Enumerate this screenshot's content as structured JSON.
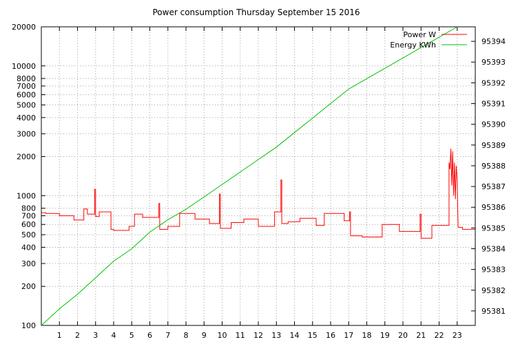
{
  "chart_data": {
    "type": "line",
    "title": "Power consumption Thursday September 15 2016",
    "x_ticks": [
      1,
      2,
      3,
      4,
      5,
      6,
      7,
      8,
      9,
      10,
      11,
      12,
      13,
      14,
      15,
      16,
      17,
      18,
      19,
      20,
      21,
      22,
      23
    ],
    "xlim": [
      0,
      24
    ],
    "y_left": {
      "scale": "log",
      "ylim": [
        100,
        20000
      ],
      "ticks": [
        100,
        200,
        300,
        400,
        500,
        600,
        700,
        800,
        1000,
        2000,
        3000,
        4000,
        5000,
        6000,
        7000,
        8000,
        10000,
        20000
      ]
    },
    "y_right": {
      "ylim": [
        95380.3,
        95394.7
      ],
      "ticks": [
        95381,
        95382,
        95383,
        95384,
        95385,
        95386,
        95387,
        95388,
        95389,
        95390,
        95391,
        95392,
        95393,
        95394
      ]
    },
    "grid": true,
    "legend_position": "top-right",
    "series": [
      {
        "name": "Power W",
        "axis": "left",
        "color": "#ff0000",
        "points": [
          [
            0,
            740
          ],
          [
            0.25,
            740
          ],
          [
            0.25,
            730
          ],
          [
            1.0,
            730
          ],
          [
            1.0,
            700
          ],
          [
            1.8,
            700
          ],
          [
            1.8,
            650
          ],
          [
            2.35,
            650
          ],
          [
            2.35,
            790
          ],
          [
            2.55,
            790
          ],
          [
            2.55,
            720
          ],
          [
            2.95,
            720
          ],
          [
            2.95,
            1120
          ],
          [
            3.0,
            1120
          ],
          [
            3.0,
            690
          ],
          [
            3.2,
            690
          ],
          [
            3.2,
            750
          ],
          [
            3.85,
            750
          ],
          [
            3.85,
            550
          ],
          [
            4.0,
            550
          ],
          [
            4.0,
            540
          ],
          [
            4.85,
            540
          ],
          [
            4.85,
            580
          ],
          [
            5.15,
            580
          ],
          [
            5.15,
            720
          ],
          [
            5.6,
            720
          ],
          [
            5.6,
            680
          ],
          [
            6.5,
            680
          ],
          [
            6.5,
            870
          ],
          [
            6.55,
            870
          ],
          [
            6.55,
            550
          ],
          [
            7.0,
            550
          ],
          [
            7.0,
            580
          ],
          [
            7.65,
            580
          ],
          [
            7.65,
            730
          ],
          [
            8.5,
            730
          ],
          [
            8.5,
            660
          ],
          [
            9.3,
            660
          ],
          [
            9.3,
            610
          ],
          [
            9.85,
            610
          ],
          [
            9.85,
            1030
          ],
          [
            9.9,
            1030
          ],
          [
            9.9,
            560
          ],
          [
            10.5,
            560
          ],
          [
            10.5,
            620
          ],
          [
            11.2,
            620
          ],
          [
            11.2,
            660
          ],
          [
            12.0,
            660
          ],
          [
            12.0,
            580
          ],
          [
            12.9,
            580
          ],
          [
            12.9,
            750
          ],
          [
            13.25,
            750
          ],
          [
            13.25,
            1320
          ],
          [
            13.3,
            1320
          ],
          [
            13.3,
            610
          ],
          [
            13.65,
            610
          ],
          [
            13.65,
            630
          ],
          [
            14.3,
            630
          ],
          [
            14.3,
            670
          ],
          [
            15.2,
            670
          ],
          [
            15.2,
            590
          ],
          [
            15.65,
            590
          ],
          [
            15.65,
            730
          ],
          [
            16.75,
            730
          ],
          [
            16.75,
            640
          ],
          [
            17.05,
            640
          ],
          [
            17.05,
            750
          ],
          [
            17.1,
            750
          ],
          [
            17.1,
            490
          ],
          [
            17.75,
            490
          ],
          [
            17.75,
            480
          ],
          [
            18.85,
            480
          ],
          [
            18.85,
            600
          ],
          [
            19.8,
            600
          ],
          [
            19.8,
            530
          ],
          [
            20.95,
            530
          ],
          [
            20.95,
            720
          ],
          [
            21.0,
            720
          ],
          [
            21.0,
            470
          ],
          [
            21.6,
            470
          ],
          [
            21.6,
            590
          ],
          [
            22.55,
            590
          ],
          [
            22.55,
            1800
          ],
          [
            22.6,
            1600
          ],
          [
            22.65,
            2300
          ],
          [
            22.7,
            1200
          ],
          [
            22.75,
            2200
          ],
          [
            22.8,
            1000
          ],
          [
            22.85,
            1800
          ],
          [
            22.9,
            940
          ],
          [
            22.95,
            1700
          ],
          [
            23.0,
            1300
          ],
          [
            23.05,
            570
          ],
          [
            23.3,
            570
          ],
          [
            23.3,
            550
          ],
          [
            24,
            550
          ]
        ]
      },
      {
        "name": "Energy KWh",
        "axis": "right",
        "color": "#00c000",
        "points": [
          [
            0,
            95380.3
          ],
          [
            1,
            95381.1
          ],
          [
            2,
            95381.8
          ],
          [
            3,
            95382.6
          ],
          [
            4,
            95383.4
          ],
          [
            5,
            95384.0
          ],
          [
            6,
            95384.8
          ],
          [
            7,
            95385.4
          ],
          [
            8,
            95385.9
          ],
          [
            9,
            95386.5
          ],
          [
            10,
            95387.1
          ],
          [
            11,
            95387.7
          ],
          [
            12,
            95388.3
          ],
          [
            13,
            95388.9
          ],
          [
            14,
            95389.6
          ],
          [
            15,
            95390.3
          ],
          [
            16,
            95391.0
          ],
          [
            17,
            95391.7
          ],
          [
            18,
            95392.2
          ],
          [
            19,
            95392.7
          ],
          [
            20,
            95393.2
          ],
          [
            21,
            95393.7
          ],
          [
            22,
            95394.2
          ],
          [
            22.6,
            95394.5
          ],
          [
            23,
            95394.8
          ]
        ]
      }
    ]
  }
}
